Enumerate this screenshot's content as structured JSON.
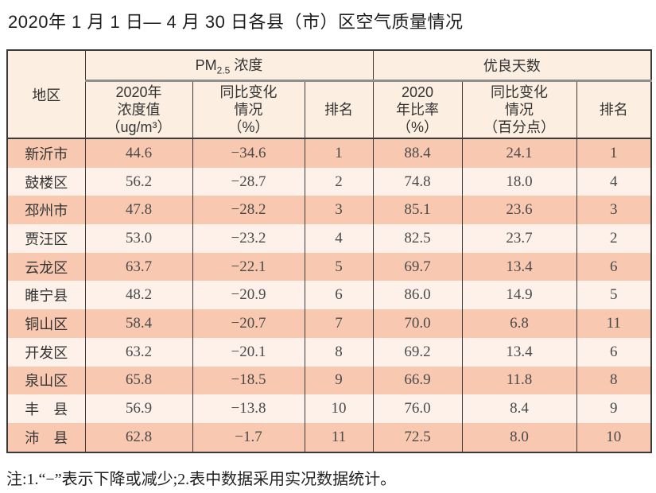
{
  "page": {
    "title": "2020年 1 月 1 日— 4 月 30 日各县（市）区空气质量情况",
    "footnote": "注:1.“−”表示下降或减少;2.表中数据采用实况数据统计。"
  },
  "colors": {
    "row_salmon": "#f8c9b0",
    "row_cream": "#fdf1e9",
    "header_bg": "#fcefe1",
    "border_dark": "#3a3a3a",
    "group_divider_gray": "#8f8f8f"
  },
  "table": {
    "header": {
      "region_label": "地区",
      "pm_group": {
        "prefix": "PM",
        "subscript": "2.5",
        "suffix": " 浓度"
      },
      "good_days_group": "优良天数",
      "sub_labels": {
        "pm_value": "2020年\n浓度值\n（ug/m³）",
        "pm_change": "同比变化\n情况\n（%）",
        "pm_rank": "排名",
        "good_rate": "2020\n年比率\n（%）",
        "good_change": "同比变化\n情况\n（百分点）",
        "good_rank": "排名"
      }
    },
    "rows": [
      {
        "region": "新沂市",
        "pm_value": "44.6",
        "pm_change": "−34.6",
        "pm_rank": "1",
        "good_rate": "88.4",
        "good_change": "24.1",
        "good_rank": "1"
      },
      {
        "region": "鼓楼区",
        "pm_value": "56.2",
        "pm_change": "−28.7",
        "pm_rank": "2",
        "good_rate": "74.8",
        "good_change": "18.0",
        "good_rank": "4"
      },
      {
        "region": "邳州市",
        "pm_value": "47.8",
        "pm_change": "−28.2",
        "pm_rank": "3",
        "good_rate": "85.1",
        "good_change": "23.6",
        "good_rank": "3"
      },
      {
        "region": "贾汪区",
        "pm_value": "53.0",
        "pm_change": "−23.2",
        "pm_rank": "4",
        "good_rate": "82.5",
        "good_change": "23.7",
        "good_rank": "2"
      },
      {
        "region": "云龙区",
        "pm_value": "63.7",
        "pm_change": "−22.1",
        "pm_rank": "5",
        "good_rate": "69.7",
        "good_change": "13.4",
        "good_rank": "6"
      },
      {
        "region": "睢宁县",
        "pm_value": "48.2",
        "pm_change": "−20.9",
        "pm_rank": "6",
        "good_rate": "86.0",
        "good_change": "14.9",
        "good_rank": "5"
      },
      {
        "region": "铜山区",
        "pm_value": "58.4",
        "pm_change": "−20.7",
        "pm_rank": "7",
        "good_rate": "70.0",
        "good_change": "6.8",
        "good_rank": "11"
      },
      {
        "region": "开发区",
        "pm_value": "63.2",
        "pm_change": "−20.1",
        "pm_rank": "8",
        "good_rate": "69.2",
        "good_change": "13.4",
        "good_rank": "6"
      },
      {
        "region": "泉山区",
        "pm_value": "65.8",
        "pm_change": "−18.5",
        "pm_rank": "9",
        "good_rate": "66.9",
        "good_change": "11.8",
        "good_rank": "8"
      },
      {
        "region": "丰　县",
        "pm_value": "56.9",
        "pm_change": "−13.8",
        "pm_rank": "10",
        "good_rate": "76.0",
        "good_change": "8.4",
        "good_rank": "9"
      },
      {
        "region": "沛　县",
        "pm_value": "62.8",
        "pm_change": "−1.7",
        "pm_rank": "11",
        "good_rate": "72.5",
        "good_change": "8.0",
        "good_rank": "10"
      }
    ]
  }
}
